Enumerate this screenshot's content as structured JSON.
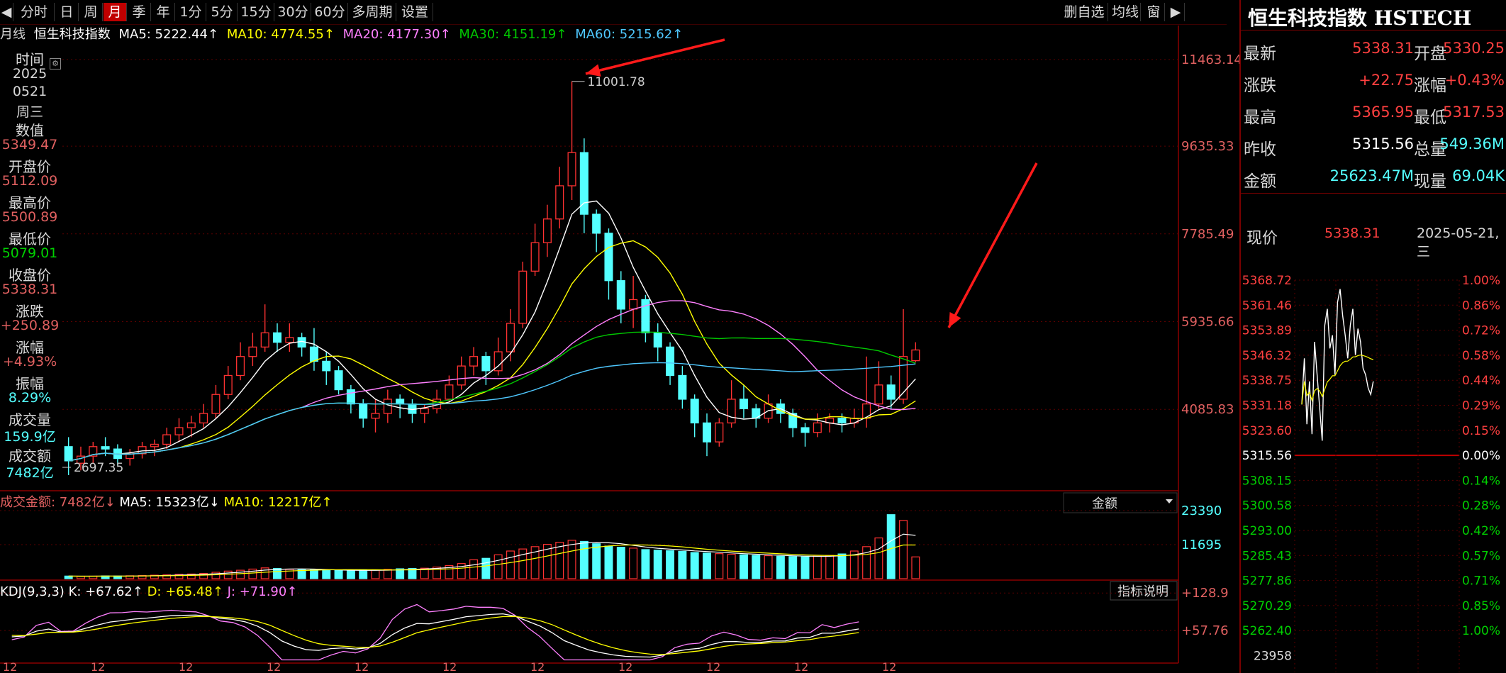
{
  "toolbar": {
    "left_arrow": "◀",
    "items": [
      "分时",
      "日",
      "周",
      "月",
      "季",
      "年",
      "1分",
      "5分",
      "15分",
      "30分",
      "60分",
      "多周期",
      "设置"
    ],
    "active": "月",
    "right_items": [
      "删自选",
      "均线",
      "窗"
    ],
    "right_arrow": "▶"
  },
  "ma_line": {
    "period": "月线",
    "name": "恒生科技指数",
    "ma5": "MA5: 5222.44↑",
    "ma10": "MA10: 4774.55↑",
    "ma20": "MA20: 4177.30↑",
    "ma30": "MA30: 4151.19↑",
    "ma60": "MA60: 5215.62↑"
  },
  "info": [
    {
      "label": "时间",
      "values": [
        "2025",
        "0521",
        "周三"
      ]
    },
    {
      "label": "数值",
      "value": "5349.47"
    },
    {
      "label": "开盘价",
      "value": "5112.09"
    },
    {
      "label": "最高价",
      "value": "5500.89"
    },
    {
      "label": "最低价",
      "value": "5079.01"
    },
    {
      "label": "收盘价",
      "value": "5338.31"
    },
    {
      "label": "涨跌",
      "value": "+250.89"
    },
    {
      "label": "涨幅",
      "value": "+4.93%"
    },
    {
      "label": "振幅",
      "value": "8.29%"
    },
    {
      "label": "成交量",
      "value": "159.9亿"
    },
    {
      "label": "成交额",
      "value": "7482亿"
    }
  ],
  "price_axis": [
    "11463.14",
    "9635.33",
    "7785.49",
    "5935.66",
    "4085.83"
  ],
  "annotations": {
    "high": "11001.78",
    "low": "2697.35"
  },
  "volume_header": {
    "label": "成交金额: 7482亿↓",
    "ma5": "MA5: 15323亿↓",
    "ma10": "MA10: 12217亿↑",
    "selector": "金额",
    "axis": [
      "23390",
      "11695"
    ]
  },
  "kdj_header": {
    "label": "KDJ(9,3,3)",
    "k": "K: +67.62↑",
    "d": "D: +65.48↑",
    "j": "J: +71.90↑",
    "button": "指标说明",
    "axis": [
      "+128.9",
      "+57.76"
    ]
  },
  "x_ticks": [
    "12",
    "12",
    "12",
    "12",
    "12",
    "12",
    "12",
    "12",
    "12",
    "12",
    "12"
  ],
  "quote": {
    "title": "恒生科技指数 HSTECH",
    "rows": [
      {
        "l1": "最新",
        "v1": "5338.31",
        "l2": "开盘",
        "v2": "5330.25"
      },
      {
        "l1": "涨跌",
        "v1": "+22.75",
        "l2": "涨幅",
        "v2": "+0.43%"
      },
      {
        "l1": "最高",
        "v1": "5365.95",
        "l2": "最低",
        "v2": "5317.53"
      },
      {
        "l1": "昨收",
        "v1": "5315.56",
        "l2": "总量",
        "v2": "549.36M"
      },
      {
        "l1": "金额",
        "v1": "25623.47M",
        "l2": "现量",
        "v2": "69.04K"
      }
    ],
    "now_label": "现价",
    "now_value": "5338.31",
    "date": "2025-05-21,三",
    "mini_left": [
      "5368.72",
      "5361.46",
      "5353.89",
      "5346.32",
      "5338.75",
      "5331.18",
      "5323.60",
      "5315.56",
      "5308.15",
      "5300.58",
      "5293.00",
      "5285.43",
      "5277.86",
      "5270.29",
      "5262.40",
      "23958"
    ],
    "mini_right": [
      "1.00%",
      "0.86%",
      "0.72%",
      "0.58%",
      "0.44%",
      "0.29%",
      "0.15%",
      "0.00%",
      "0.14%",
      "0.28%",
      "0.42%",
      "0.57%",
      "0.71%",
      "0.85%",
      "1.00%"
    ]
  },
  "colors": {
    "up": "#ff3232",
    "down": "#54ffff",
    "ma5": "#ffffff",
    "ma10": "#ffff00",
    "ma20": "#ff80ff",
    "ma30": "#00c800",
    "ma60": "#4fc8ff",
    "grid": "#5a0000",
    "arrow": "#ff1a1a"
  },
  "chart_data": {
    "type": "candlestick",
    "title": "恒生科技指数 月线",
    "ylim": [
      2400,
      11700
    ],
    "candles": [
      [
        3300,
        3000,
        3500,
        2700
      ],
      [
        2950,
        3100,
        3300,
        2800
      ],
      [
        3100,
        3300,
        3400,
        2950
      ],
      [
        3300,
        3250,
        3500,
        3100
      ],
      [
        3250,
        3050,
        3350,
        2900
      ],
      [
        3050,
        3150,
        3250,
        2900
      ],
      [
        3150,
        3300,
        3400,
        3050
      ],
      [
        3300,
        3350,
        3450,
        3100
      ],
      [
        3350,
        3550,
        3700,
        3250
      ],
      [
        3550,
        3700,
        3900,
        3400
      ],
      [
        3700,
        3800,
        3950,
        3500
      ],
      [
        3800,
        4000,
        4200,
        3700
      ],
      [
        4000,
        4400,
        4600,
        3900
      ],
      [
        4400,
        4800,
        5000,
        4300
      ],
      [
        4800,
        5200,
        5500,
        4700
      ],
      [
        5200,
        5400,
        5700,
        5000
      ],
      [
        5400,
        5700,
        6300,
        5300
      ],
      [
        5700,
        5500,
        5900,
        5300
      ],
      [
        5500,
        5600,
        5900,
        5300
      ],
      [
        5600,
        5400,
        5700,
        5200
      ],
      [
        5400,
        5100,
        5800,
        4900
      ],
      [
        5100,
        4900,
        5300,
        4600
      ],
      [
        4900,
        4500,
        5000,
        4400
      ],
      [
        4500,
        4200,
        4600,
        4000
      ],
      [
        4200,
        3900,
        4300,
        3700
      ],
      [
        3900,
        4000,
        4300,
        3600
      ],
      [
        4000,
        4300,
        4500,
        3800
      ],
      [
        4300,
        4200,
        4400,
        3900
      ],
      [
        4200,
        4000,
        4300,
        3800
      ],
      [
        4000,
        4100,
        4200,
        3800
      ],
      [
        4100,
        4300,
        4500,
        4000
      ],
      [
        4300,
        4600,
        4800,
        4200
      ],
      [
        4600,
        5000,
        5200,
        4500
      ],
      [
        5000,
        5200,
        5400,
        4800
      ],
      [
        5200,
        4900,
        5300,
        4600
      ],
      [
        4900,
        5300,
        5600,
        4800
      ],
      [
        5300,
        5900,
        6200,
        5100
      ],
      [
        5900,
        7000,
        7200,
        5800
      ],
      [
        7000,
        7600,
        8000,
        6900
      ],
      [
        7600,
        8100,
        8400,
        7300
      ],
      [
        8100,
        8800,
        9200,
        7900
      ],
      [
        8800,
        9500,
        11001,
        8500
      ],
      [
        9500,
        8200,
        9800,
        7800
      ],
      [
        8200,
        7800,
        8300,
        7400
      ],
      [
        7800,
        6800,
        7900,
        6400
      ],
      [
        6800,
        6200,
        7000,
        5900
      ],
      [
        6200,
        6400,
        6900,
        5800
      ],
      [
        6400,
        5700,
        6500,
        5500
      ],
      [
        5700,
        5400,
        5900,
        5100
      ],
      [
        5400,
        4800,
        5500,
        4600
      ],
      [
        4800,
        4300,
        5000,
        4100
      ],
      [
        4300,
        3800,
        4400,
        3500
      ],
      [
        3800,
        3400,
        4000,
        3100
      ],
      [
        3400,
        3800,
        3900,
        3300
      ],
      [
        3800,
        4300,
        4700,
        3700
      ],
      [
        4300,
        4100,
        4600,
        3900
      ],
      [
        4100,
        3900,
        4200,
        3700
      ],
      [
        3900,
        4200,
        4400,
        3800
      ],
      [
        4200,
        4000,
        4300,
        3800
      ],
      [
        4000,
        3700,
        4100,
        3500
      ],
      [
        3700,
        3600,
        3800,
        3300
      ],
      [
        3600,
        3800,
        4000,
        3500
      ],
      [
        3800,
        3900,
        4000,
        3600
      ],
      [
        3900,
        3800,
        4000,
        3600
      ],
      [
        3800,
        3900,
        4100,
        3700
      ],
      [
        3900,
        4200,
        5200,
        3700
      ],
      [
        4200,
        4600,
        5100,
        4100
      ],
      [
        4600,
        4300,
        4800,
        4100
      ],
      [
        4300,
        5200,
        6200,
        4200
      ],
      [
        5112,
        5338,
        5501,
        5079
      ]
    ],
    "high_label": 11001.78,
    "low_label": 2697.35,
    "volume_ylim": [
      0,
      23390
    ],
    "volume": [
      900,
      800,
      850,
      950,
      900,
      1000,
      1100,
      1200,
      1300,
      1500,
      1600,
      1800,
      2200,
      2600,
      2900,
      3300,
      3700,
      3500,
      3200,
      3100,
      3000,
      2900,
      2800,
      2700,
      2900,
      3000,
      3200,
      3400,
      3500,
      3600,
      4000,
      4500,
      5200,
      6500,
      7000,
      8200,
      9500,
      10200,
      11000,
      11800,
      12500,
      13200,
      12800,
      12000,
      11200,
      10800,
      10500,
      10000,
      9800,
      9600,
      9400,
      9000,
      8800,
      8600,
      8400,
      8200,
      8000,
      7900,
      7700,
      7600,
      7500,
      7700,
      8000,
      8500,
      9500,
      11000,
      14000,
      22000,
      20000,
      7482
    ],
    "kdj_ylim": [
      0,
      140
    ]
  }
}
